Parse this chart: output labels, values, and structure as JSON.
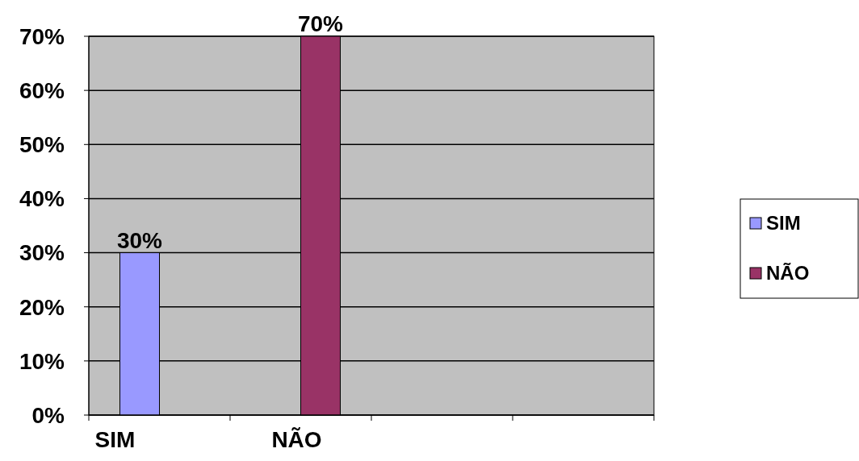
{
  "chart_data": {
    "type": "bar",
    "categories": [
      "SIM",
      "NÃO",
      null,
      null
    ],
    "series": [
      {
        "name": "SIM",
        "color": "#9999ff",
        "values": [
          30,
          null,
          null,
          null
        ],
        "value_labels": [
          "30%",
          null,
          null,
          null
        ]
      },
      {
        "name": "NÃO",
        "color": "#993366",
        "values": [
          null,
          70,
          null,
          null
        ],
        "value_labels": [
          null,
          "70%",
          null,
          null
        ]
      }
    ],
    "ylim": [
      0,
      70
    ],
    "yticks": [
      {
        "value": 0,
        "label": "0%"
      },
      {
        "value": 10,
        "label": "10%"
      },
      {
        "value": 20,
        "label": "20%"
      },
      {
        "value": 30,
        "label": "30%"
      },
      {
        "value": 40,
        "label": "40%"
      },
      {
        "value": 50,
        "label": "50%"
      },
      {
        "value": 60,
        "label": "60%"
      },
      {
        "value": 70,
        "label": "70%"
      }
    ],
    "grid": "y",
    "legend": "right"
  }
}
